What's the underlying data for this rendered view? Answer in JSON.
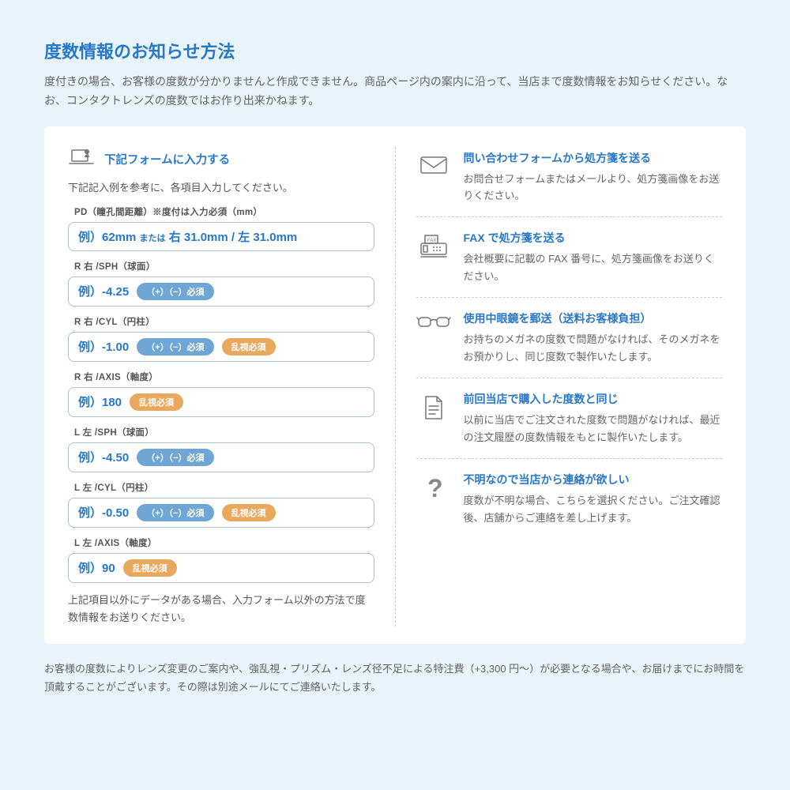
{
  "page": {
    "title": "度数情報のお知らせ方法",
    "intro": "度付きの場合、お客様の度数が分かりませんと作成できません。商品ページ内の案内に沿って、当店まで度数情報をお知らせください。なお、コンタクトレンズの度数ではお作り出来かねます。",
    "footer": "お客様の度数によりレンズ変更のご案内や、強乱視・プリズム・レンズ径不足による特注費（+3,300 円〜）が必要となる場合や、お届けまでにお時間を頂戴することがございます。その際は別途メールにてご連絡いたします。"
  },
  "form": {
    "title": "下記フォームに入力する",
    "subtitle": "下記記入例を参考に、各項目入力してください。",
    "note": "上記項目以外にデータがある場合、入力フォーム以外の方法で度数情報をお送りください。",
    "fields": [
      {
        "label": "PD（瞳孔間距離）※度付は入力必須（mm）",
        "example": "例）62mm",
        "or": "または",
        "example2": "右 31.0mm / 左 31.0mm",
        "pills": []
      },
      {
        "label": "R 右 /SPH（球面）",
        "example": "例）-4.25",
        "pills": [
          {
            "type": "blue",
            "text": "（+）（−）必須"
          }
        ]
      },
      {
        "label": "R 右 /CYL（円柱）",
        "example": "例）-1.00",
        "pills": [
          {
            "type": "blue",
            "text": "（+）（−）必須"
          },
          {
            "type": "orange",
            "text": "乱視必須"
          }
        ]
      },
      {
        "label": "R 右 /AXIS（軸度）",
        "example": "例）180",
        "pills": [
          {
            "type": "orange",
            "text": "乱視必須"
          }
        ]
      },
      {
        "label": "L 左 /SPH（球面）",
        "example": "例）-4.50",
        "pills": [
          {
            "type": "blue",
            "text": "（+）（−）必須"
          }
        ]
      },
      {
        "label": "L 左 /CYL（円柱）",
        "example": "例）-0.50",
        "pills": [
          {
            "type": "blue",
            "text": "（+）（−）必須"
          },
          {
            "type": "orange",
            "text": "乱視必須"
          }
        ]
      },
      {
        "label": "L 左 /AXIS（軸度）",
        "example": "例）90",
        "pills": [
          {
            "type": "orange",
            "text": "乱視必須"
          }
        ]
      }
    ]
  },
  "methods": [
    {
      "icon": "mail",
      "title": "問い合わせフォームから処方箋を送る",
      "desc": "お問合せフォームまたはメールより、処方箋画像をお送りください。"
    },
    {
      "icon": "fax",
      "title": "FAX で処方箋を送る",
      "desc": "会社概要に記載の FAX 番号に、処方箋画像をお送りください。"
    },
    {
      "icon": "glasses",
      "title": "使用中眼鏡を郵送（送料お客様負担）",
      "desc": "お持ちのメガネの度数で問題がなければ、そのメガネをお預かりし、同じ度数で製作いたします。"
    },
    {
      "icon": "doc",
      "title": "前回当店で購入した度数と同じ",
      "desc": "以前に当店でご注文された度数で問題がなければ、最近の注文履歴の度数情報をもとに製作いたします。"
    },
    {
      "icon": "question",
      "title": "不明なので当店から連絡が欲しい",
      "desc": "度数が不明な場合、こちらを選択ください。ご注文確認後、店舗からご連絡を差し上げます。"
    }
  ],
  "colors": {
    "primary": "#2878c7",
    "background": "#e8f3fa",
    "pill_blue": "#6fa6d4",
    "pill_orange": "#e8a95e",
    "border": "#aebfcd",
    "text": "#666"
  }
}
